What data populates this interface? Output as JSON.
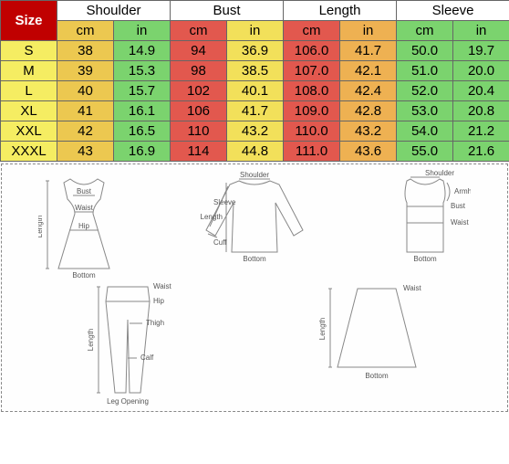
{
  "header": {
    "size_label": "Size",
    "groups": [
      "Shoulder",
      "Bust",
      "Length",
      "Sleeve"
    ],
    "units": [
      "cm",
      "in",
      "cm",
      "in",
      "cm",
      "in",
      "cm",
      "in"
    ]
  },
  "colors": {
    "size_col": "#f5ed62",
    "unit_bg": [
      "#ecc850",
      "#7bd36e",
      "#e2584e",
      "#f2e05a",
      "#e2584e",
      "#eeb152",
      "#7bd36e",
      "#7bd36e"
    ],
    "cell_bg": [
      [
        "#ecc850",
        "#7bd36e",
        "#e2584e",
        "#f2e05a",
        "#e2584e",
        "#eeb152",
        "#7bd36e",
        "#7bd36e"
      ],
      [
        "#ecc850",
        "#7bd36e",
        "#e2584e",
        "#f2e05a",
        "#e2584e",
        "#eeb152",
        "#7bd36e",
        "#7bd36e"
      ],
      [
        "#ecc850",
        "#7bd36e",
        "#e2584e",
        "#f2e05a",
        "#e2584e",
        "#eeb152",
        "#7bd36e",
        "#7bd36e"
      ],
      [
        "#ecc850",
        "#7bd36e",
        "#e2584e",
        "#f2e05a",
        "#e2584e",
        "#eeb152",
        "#7bd36e",
        "#7bd36e"
      ],
      [
        "#ecc850",
        "#7bd36e",
        "#e2584e",
        "#f2e05a",
        "#e2584e",
        "#eeb152",
        "#7bd36e",
        "#7bd36e"
      ],
      [
        "#ecc850",
        "#7bd36e",
        "#e2584e",
        "#f2e05a",
        "#e2584e",
        "#eeb152",
        "#7bd36e",
        "#7bd36e"
      ]
    ]
  },
  "col_widths": [
    "62",
    "62",
    "62",
    "62",
    "62",
    "62",
    "62",
    "62",
    "62"
  ],
  "rows": [
    {
      "size": "S",
      "v": [
        "38",
        "14.9",
        "94",
        "36.9",
        "106.0",
        "41.7",
        "50.0",
        "19.7"
      ]
    },
    {
      "size": "M",
      "v": [
        "39",
        "15.3",
        "98",
        "38.5",
        "107.0",
        "42.1",
        "51.0",
        "20.0"
      ]
    },
    {
      "size": "L",
      "v": [
        "40",
        "15.7",
        "102",
        "40.1",
        "108.0",
        "42.4",
        "52.0",
        "20.4"
      ]
    },
    {
      "size": "XL",
      "v": [
        "41",
        "16.1",
        "106",
        "41.7",
        "109.0",
        "42.8",
        "53.0",
        "20.8"
      ]
    },
    {
      "size": "XXL",
      "v": [
        "42",
        "16.5",
        "110",
        "43.2",
        "110.0",
        "43.2",
        "54.0",
        "21.2"
      ]
    },
    {
      "size": "XXXL",
      "v": [
        "43",
        "16.9",
        "114",
        "44.8",
        "111.0",
        "43.6",
        "55.0",
        "21.6"
      ]
    }
  ],
  "diagram_labels": {
    "bust": "Bust",
    "waist": "Waist",
    "hip": "Hip",
    "length": "Length",
    "bottom": "Bottom",
    "sleeve": "Sleeve",
    "cuff": "Cuff",
    "shoulder": "Shoulder",
    "armhole": "Armhole",
    "thigh": "Thigh",
    "calf": "Calf",
    "leg_opening": "Leg Opening"
  }
}
